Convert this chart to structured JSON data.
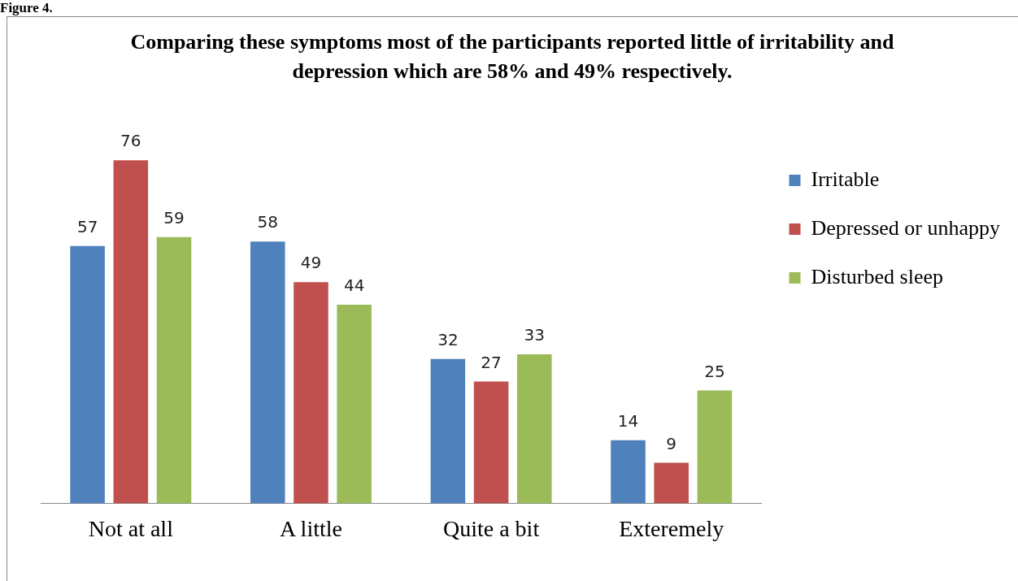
{
  "chart_data": {
    "type": "bar",
    "title": "Comparing these symptoms most of the participants reported little of irritability and depression   which are 58% and 49% respectively.",
    "annotations": [
      "Figure 4."
    ],
    "categories": [
      "Not at all",
      "A little",
      "Quite a bit",
      "Exteremely"
    ],
    "series": [
      {
        "name": "Irritable",
        "color": "#4f81bd",
        "values": [
          57,
          58,
          32,
          14
        ]
      },
      {
        "name": "Depressed or unhappy",
        "color": "#c0504d",
        "values": [
          76,
          49,
          27,
          9
        ]
      },
      {
        "name": "Disturbed sleep",
        "color": "#9bbb59",
        "values": [
          59,
          44,
          33,
          25
        ]
      }
    ],
    "data_labels": true,
    "legend": "right",
    "grid": false
  }
}
